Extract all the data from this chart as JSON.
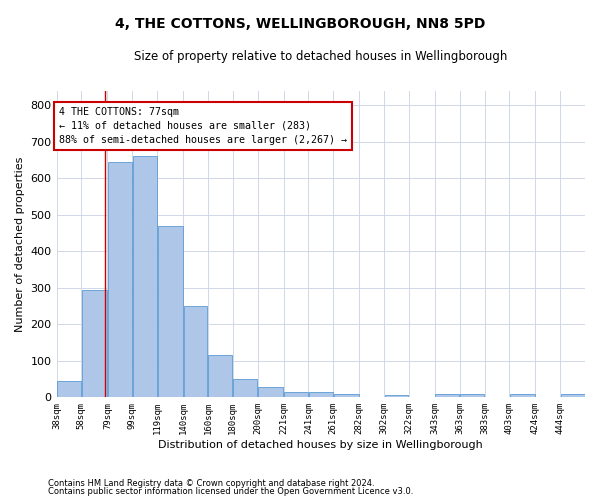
{
  "title": "4, THE COTTONS, WELLINGBOROUGH, NN8 5PD",
  "subtitle": "Size of property relative to detached houses in Wellingborough",
  "xlabel": "Distribution of detached houses by size in Wellingborough",
  "ylabel": "Number of detached properties",
  "bar_color": "#aec6e8",
  "bar_edge_color": "#5b9bd5",
  "grid_color": "#d0d8e8",
  "background_color": "#ffffff",
  "annotation_box_color": "#cc0000",
  "annotation_text_line1": "4 THE COTTONS: 77sqm",
  "annotation_text_line2": "← 11% of detached houses are smaller (283)",
  "annotation_text_line3": "88% of semi-detached houses are larger (2,267) →",
  "ref_line_x": 77,
  "categories": [
    "38sqm",
    "58sqm",
    "79sqm",
    "99sqm",
    "119sqm",
    "140sqm",
    "160sqm",
    "180sqm",
    "200sqm",
    "221sqm",
    "241sqm",
    "261sqm",
    "282sqm",
    "302sqm",
    "322sqm",
    "343sqm",
    "363sqm",
    "383sqm",
    "403sqm",
    "424sqm",
    "444sqm"
  ],
  "bin_edges": [
    38,
    58,
    79,
    99,
    119,
    140,
    160,
    180,
    200,
    221,
    241,
    261,
    282,
    302,
    322,
    343,
    363,
    383,
    403,
    424,
    444,
    464
  ],
  "values": [
    45,
    293,
    645,
    660,
    468,
    250,
    115,
    50,
    27,
    14,
    15,
    10,
    0,
    7,
    0,
    8,
    8,
    0,
    8,
    0,
    8
  ],
  "ylim": [
    0,
    840
  ],
  "yticks": [
    0,
    100,
    200,
    300,
    400,
    500,
    600,
    700,
    800
  ],
  "footnote1": "Contains HM Land Registry data © Crown copyright and database right 2024.",
  "footnote2": "Contains public sector information licensed under the Open Government Licence v3.0."
}
